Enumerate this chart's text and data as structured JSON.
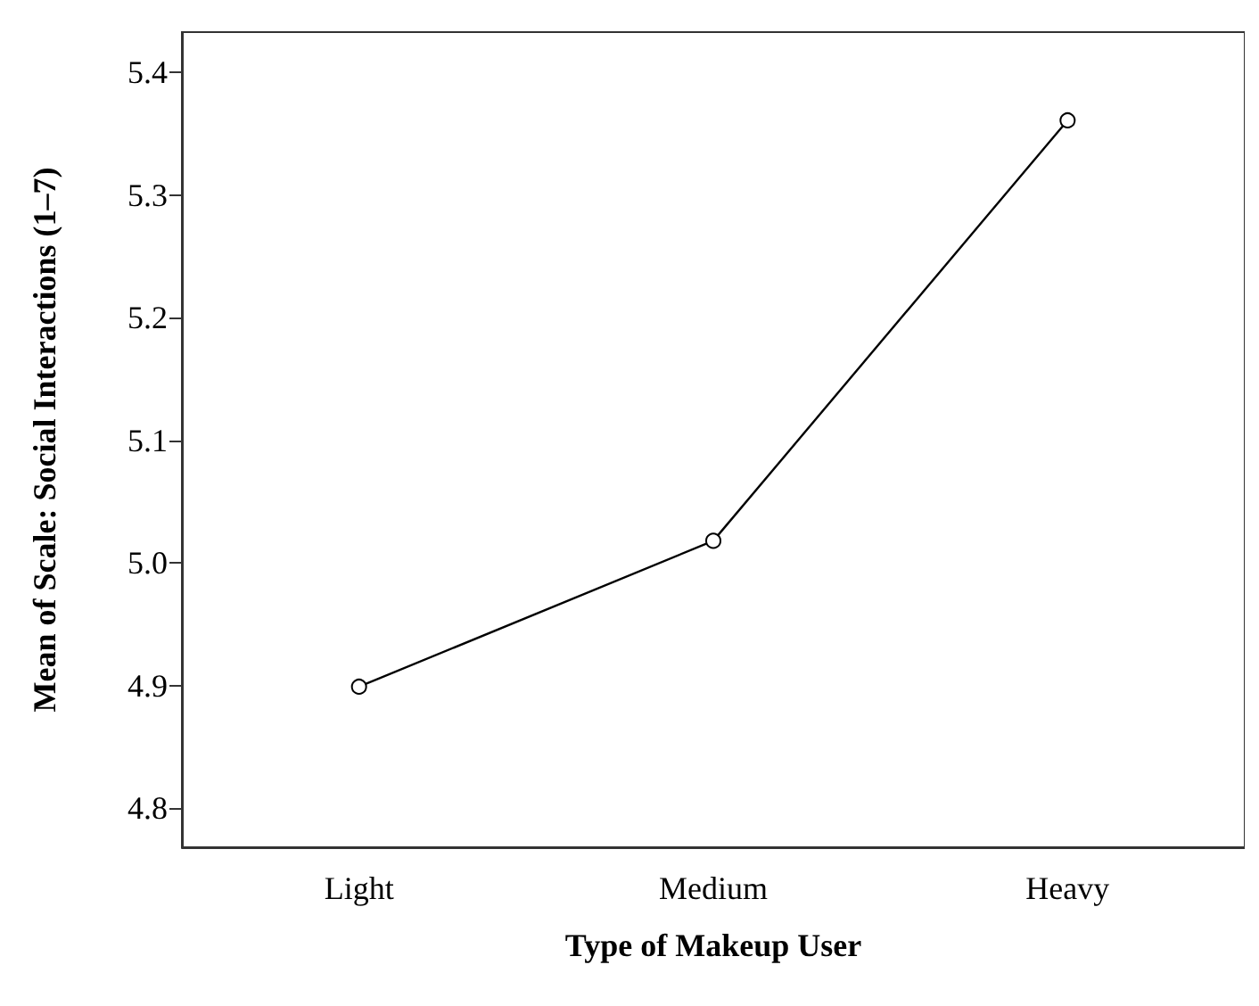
{
  "chart_data": {
    "type": "line",
    "xlabel": "Type of Makeup User",
    "ylabel": "Mean of Scale: Social Interactions (1–7)",
    "categories": [
      "Light",
      "Medium",
      "Heavy"
    ],
    "series": [
      {
        "color": "#000000",
        "values": [
          4.899,
          5.018,
          5.361
        ]
      }
    ],
    "ylim": [
      4.768,
      5.433
    ],
    "yticks": [
      {
        "value": 4.8,
        "label": "4.8"
      },
      {
        "value": 4.9,
        "label": "4.9"
      },
      {
        "value": 5,
        "label": "5.0"
      },
      {
        "value": 5.1,
        "label": "5.1"
      },
      {
        "value": 5.2,
        "label": "5.2"
      },
      {
        "value": 5.3,
        "label": "5.3"
      },
      {
        "value": 5.4,
        "label": "5.4"
      }
    ],
    "marker": "circle",
    "line_style": "solid"
  }
}
